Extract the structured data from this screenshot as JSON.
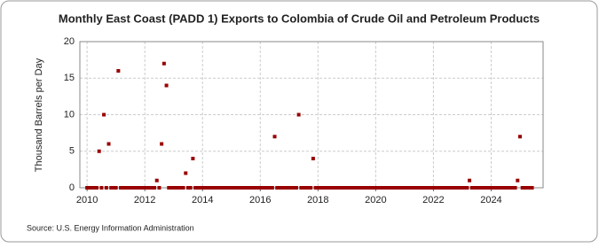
{
  "chart_data": {
    "type": "scatter",
    "title": "Monthly East Coast (PADD 1) Exports to Colombia of Crude Oil and Petroleum Products",
    "y_label": "Thousand Barrels per Day",
    "source": "Source: U.S. Energy Information Administration",
    "color": "#990000",
    "x": [
      2010,
      2010.083,
      2010.167,
      2010.25,
      2010.333,
      2010.417,
      2010.5,
      2010.583,
      2010.667,
      2010.75,
      2010.833,
      2010.917,
      2011,
      2011.083,
      2011.167,
      2011.25,
      2011.333,
      2011.417,
      2011.5,
      2011.583,
      2011.667,
      2011.75,
      2011.833,
      2011.917,
      2012,
      2012.083,
      2012.167,
      2012.25,
      2012.333,
      2012.417,
      2012.5,
      2012.583,
      2012.667,
      2012.75,
      2012.833,
      2012.917,
      2013,
      2013.083,
      2013.167,
      2013.25,
      2013.333,
      2013.417,
      2013.5,
      2013.583,
      2013.667,
      2013.75,
      2013.833,
      2013.917,
      2014,
      2014.083,
      2014.167,
      2014.25,
      2014.333,
      2014.417,
      2014.5,
      2014.583,
      2014.667,
      2014.75,
      2014.833,
      2014.917,
      2015,
      2015.083,
      2015.167,
      2015.25,
      2015.333,
      2015.417,
      2015.5,
      2015.583,
      2015.667,
      2015.75,
      2015.833,
      2015.917,
      2016,
      2016.083,
      2016.167,
      2016.25,
      2016.333,
      2016.417,
      2016.5,
      2016.583,
      2016.667,
      2016.75,
      2016.833,
      2016.917,
      2017,
      2017.083,
      2017.167,
      2017.25,
      2017.333,
      2017.417,
      2017.5,
      2017.583,
      2017.667,
      2017.75,
      2017.833,
      2017.917,
      2018,
      2018.083,
      2018.167,
      2018.25,
      2018.333,
      2018.417,
      2018.5,
      2018.583,
      2018.667,
      2018.75,
      2018.833,
      2018.917,
      2019,
      2019.083,
      2019.167,
      2019.25,
      2019.333,
      2019.417,
      2019.5,
      2019.583,
      2019.667,
      2019.75,
      2019.833,
      2019.917,
      2020,
      2020.083,
      2020.167,
      2020.25,
      2020.333,
      2020.417,
      2020.5,
      2020.583,
      2020.667,
      2020.75,
      2020.833,
      2020.917,
      2021,
      2021.083,
      2021.167,
      2021.25,
      2021.333,
      2021.417,
      2021.5,
      2021.583,
      2021.667,
      2021.75,
      2021.833,
      2021.917,
      2022,
      2022.083,
      2022.167,
      2022.25,
      2022.333,
      2022.417,
      2022.5,
      2022.583,
      2022.667,
      2022.75,
      2022.833,
      2022.917,
      2023,
      2023.083,
      2023.167,
      2023.25,
      2023.333,
      2023.417,
      2023.5,
      2023.583,
      2023.667,
      2023.75,
      2023.833,
      2023.917,
      2024,
      2024.083,
      2024.167,
      2024.25,
      2024.333,
      2024.417,
      2024.5,
      2024.583,
      2024.667,
      2024.75,
      2024.833,
      2024.917,
      2025,
      2025.083,
      2025.167,
      2025.25,
      2025.333,
      2025.417
    ],
    "values": [
      0,
      0,
      0,
      0,
      0,
      5,
      0,
      10,
      0,
      6,
      0,
      0,
      0,
      16,
      0,
      0,
      0,
      0,
      0,
      0,
      0,
      0,
      0,
      0,
      0,
      0,
      0,
      0,
      0,
      1,
      0,
      6,
      17,
      14,
      0,
      0,
      0,
      0,
      0,
      0,
      0,
      2,
      0,
      0,
      4,
      0,
      0,
      0,
      0,
      0,
      0,
      0,
      0,
      0,
      0,
      0,
      0,
      0,
      0,
      0,
      0,
      0,
      0,
      0,
      0,
      0,
      0,
      0,
      0,
      0,
      0,
      0,
      0,
      0,
      0,
      0,
      0,
      0,
      7,
      0,
      0,
      0,
      0,
      0,
      0,
      0,
      0,
      0,
      10,
      0,
      0,
      0,
      0,
      0,
      4,
      0,
      0,
      0,
      0,
      0,
      0,
      0,
      0,
      0,
      0,
      0,
      0,
      0,
      0,
      0,
      0,
      0,
      0,
      0,
      0,
      0,
      0,
      0,
      0,
      0,
      0,
      0,
      0,
      0,
      0,
      0,
      0,
      0,
      0,
      0,
      0,
      0,
      0,
      0,
      0,
      0,
      0,
      0,
      0,
      0,
      0,
      0,
      0,
      0,
      0,
      0,
      0,
      0,
      0,
      0,
      0,
      0,
      0,
      0,
      0,
      0,
      0,
      0,
      0,
      1,
      0,
      0,
      0,
      0,
      0,
      0,
      0,
      0,
      0,
      0,
      0,
      0,
      0,
      0,
      0,
      0,
      0,
      0,
      0,
      1,
      7,
      0,
      0,
      0,
      0,
      0
    ],
    "xlim": [
      2009.75,
      2025.8
    ],
    "xticks": [
      2010,
      2012,
      2014,
      2016,
      2018,
      2020,
      2022,
      2024
    ],
    "ylim": [
      0,
      20
    ],
    "yticks": [
      0,
      5,
      10,
      15,
      20
    ],
    "grid": true
  }
}
